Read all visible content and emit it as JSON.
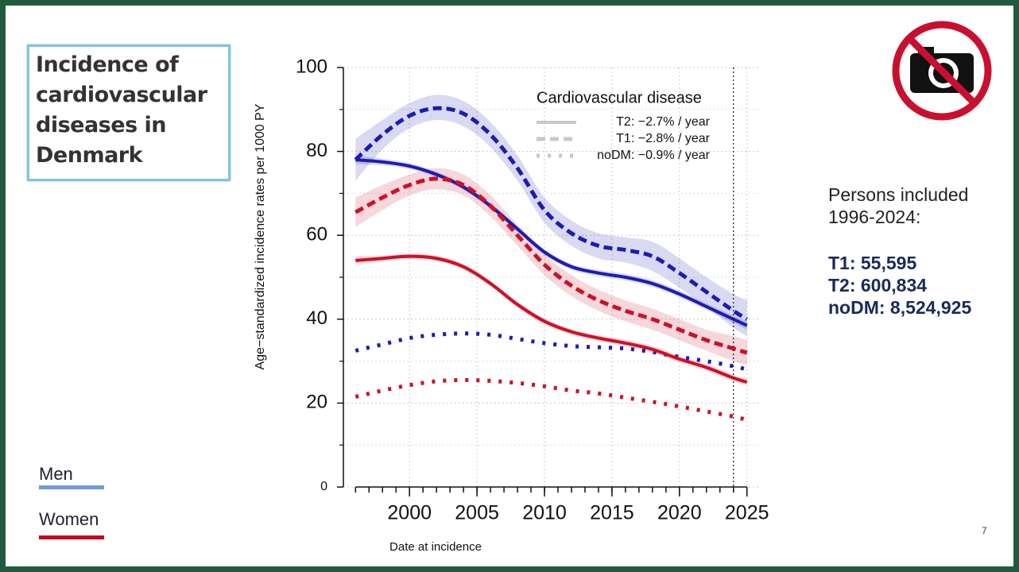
{
  "slide": {
    "title": "Incidence of cardiovascular diseases in Denmark",
    "persons_heading": "Persons included 1996-2024:",
    "persons": [
      "T1: 55,595",
      "T2: 600,834",
      "noDM: 8,524,925"
    ],
    "page_number": "7",
    "color_legend": [
      {
        "label": "Men",
        "color": "#6f9bd8"
      },
      {
        "label": "Women",
        "color": "#c00d1e"
      }
    ]
  },
  "chart_data": {
    "type": "line",
    "y_label": "Age−standardized incidence rates per 1000 PY",
    "x_label": "Date at incidence",
    "legend": {
      "title": "Cardiovascular disease",
      "entries": [
        {
          "label": "T2: −2.7% / year",
          "dash": "solid"
        },
        {
          "label": "T1: −2.8% / year",
          "dash": "dashed"
        },
        {
          "label": "noDM: −0.9% / year",
          "dash": "dotted"
        }
      ]
    },
    "x": [
      1996,
      1998,
      2000,
      2002,
      2004,
      2006,
      2008,
      2010,
      2012,
      2014,
      2016,
      2018,
      2020,
      2022,
      2024,
      2025
    ],
    "series": [
      {
        "color": "#1c1cb4",
        "dash": "dashed",
        "values": [
          78,
          84,
          88.5,
          90.3,
          89,
          84,
          76,
          66,
          60.5,
          57.5,
          56.5,
          55,
          51,
          46.5,
          42,
          40
        ],
        "lower": [
          73,
          80.5,
          85.5,
          87.5,
          86,
          81,
          73,
          63,
          57.5,
          54.5,
          53.5,
          51.5,
          47.5,
          43,
          38,
          36
        ],
        "upper": [
          83,
          87.5,
          91.5,
          93.5,
          92,
          87,
          79,
          69,
          63.5,
          60.5,
          59.5,
          58.5,
          54.5,
          50,
          46,
          44.5
        ]
      },
      {
        "color": "#1c1cb4",
        "dash": "solid",
        "values": [
          78,
          77.5,
          76.5,
          74.5,
          71.5,
          67,
          61.5,
          56,
          52.5,
          51,
          50,
          48.5,
          46,
          43,
          40,
          38.5
        ],
        "lower": [
          77,
          76.7,
          75.8,
          73.8,
          70.8,
          66.3,
          60.8,
          55.3,
          51.8,
          50.3,
          49.2,
          47.7,
          45.2,
          42.2,
          39.1,
          37.5
        ],
        "upper": [
          79,
          78.3,
          77.2,
          75.2,
          72.2,
          67.7,
          62.2,
          56.7,
          53.2,
          51.7,
          50.8,
          49.3,
          46.8,
          43.8,
          40.9,
          39.5
        ]
      },
      {
        "color": "#1c1cb4",
        "dash": "dotted",
        "values": [
          32.5,
          34,
          35.5,
          36.3,
          36.6,
          36.3,
          35.3,
          34.3,
          33.6,
          33.3,
          33,
          32.2,
          31,
          30,
          28.8,
          28
        ]
      },
      {
        "color": "#cc1128",
        "dash": "dashed",
        "values": [
          65.5,
          69,
          72,
          73.5,
          72,
          67,
          60,
          53,
          48,
          44.5,
          42,
          40,
          37.5,
          35,
          33,
          32
        ],
        "lower": [
          62,
          66,
          69.5,
          71,
          69.5,
          64.5,
          57.5,
          50.5,
          45.5,
          42,
          39.5,
          37.5,
          35,
          32.5,
          30,
          29
        ],
        "upper": [
          69,
          72,
          74.5,
          76,
          74.5,
          69.5,
          62.5,
          55.5,
          50.5,
          47,
          44.5,
          42.5,
          40,
          37.5,
          36,
          35
        ]
      },
      {
        "color": "#cc1128",
        "dash": "solid",
        "values": [
          54,
          54.5,
          55,
          54.5,
          52.5,
          48.5,
          43.5,
          39.5,
          37,
          35.5,
          34.3,
          32.8,
          30.5,
          28.5,
          26,
          25
        ],
        "lower": [
          53,
          53.8,
          54.3,
          53.8,
          51.8,
          47.8,
          42.8,
          38.8,
          36.3,
          34.8,
          33.5,
          32,
          29.7,
          27.7,
          25.2,
          24.2
        ],
        "upper": [
          55,
          55.2,
          55.7,
          55.2,
          53.2,
          49.2,
          44.2,
          40.2,
          37.7,
          36.2,
          35.1,
          33.6,
          31.3,
          29.3,
          26.8,
          25.8
        ]
      },
      {
        "color": "#cc1128",
        "dash": "dotted",
        "values": [
          21.5,
          23,
          24.3,
          25.2,
          25.5,
          25.3,
          24.8,
          24,
          23,
          22.3,
          21.3,
          20.3,
          19.2,
          18,
          16.8,
          16
        ]
      }
    ],
    "xlim": [
      1995.1,
      2025.9
    ],
    "ylim": [
      0,
      100
    ],
    "xticks": [
      2000,
      2005,
      2010,
      2015,
      2020,
      2025
    ],
    "xminorticks": [
      1996,
      1997,
      1998,
      1999,
      2000,
      2001,
      2002,
      2003,
      2004,
      2005,
      2006,
      2007,
      2008,
      2009,
      2010,
      2011,
      2012,
      2013,
      2014,
      2015,
      2016,
      2017,
      2018,
      2019,
      2020,
      2021,
      2022,
      2023,
      2024,
      2025
    ],
    "yticks": [
      0,
      20,
      40,
      60,
      80,
      100
    ],
    "yminorticks": [
      10,
      30,
      50,
      70,
      90
    ],
    "grid": true,
    "vline": 2024
  }
}
